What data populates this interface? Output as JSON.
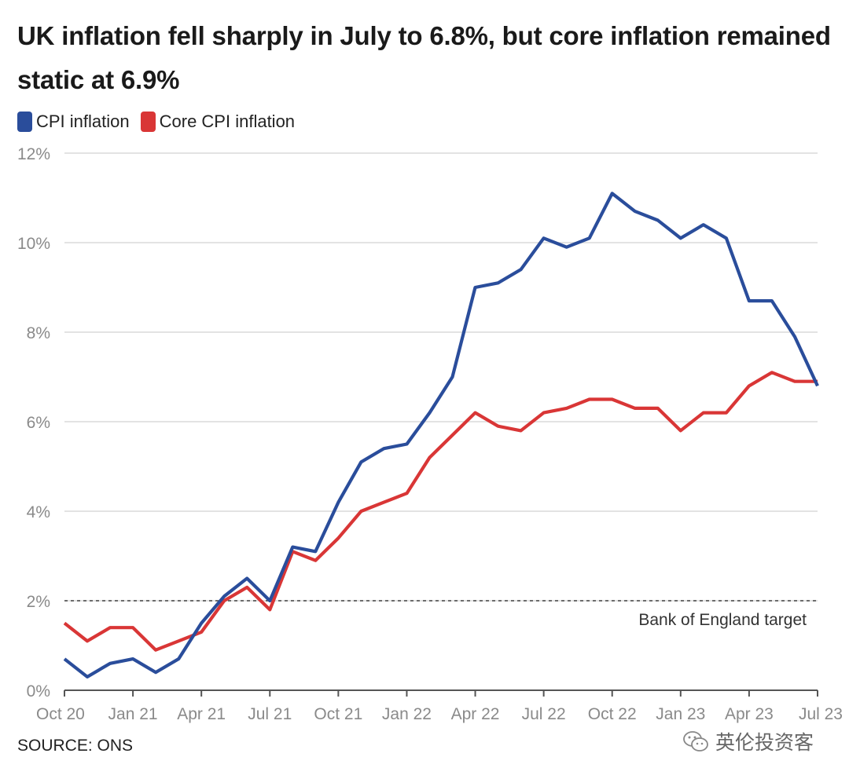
{
  "title": "UK inflation fell sharply in July to 6.8%, but core inflation remained static at 6.9%",
  "source": "SOURCE: ONS",
  "watermark": "英伦投资客",
  "colors": {
    "cpi": "#2a4d9b",
    "core": "#d93636",
    "grid": "#e3e3e3",
    "axis_text": "#8a8a8a"
  },
  "chart_data": {
    "type": "line",
    "title": "UK inflation fell sharply in July to 6.8%, but core inflation remained static at 6.9%",
    "xlabel": "",
    "ylabel": "",
    "ylim": [
      0,
      12
    ],
    "yticks": [
      "0%",
      "2%",
      "4%",
      "6%",
      "8%",
      "10%",
      "12%"
    ],
    "xticks": [
      "Oct 20",
      "Jan 21",
      "Apr 21",
      "Jul 21",
      "Oct 21",
      "Jan 22",
      "Apr 22",
      "Jul 22",
      "Oct 22",
      "Jan 23",
      "Apr 23",
      "Jul 23"
    ],
    "x": [
      "2020-10",
      "2020-11",
      "2020-12",
      "2021-01",
      "2021-02",
      "2021-03",
      "2021-04",
      "2021-05",
      "2021-06",
      "2021-07",
      "2021-08",
      "2021-09",
      "2021-10",
      "2021-11",
      "2021-12",
      "2022-01",
      "2022-02",
      "2022-03",
      "2022-04",
      "2022-05",
      "2022-06",
      "2022-07",
      "2022-08",
      "2022-09",
      "2022-10",
      "2022-11",
      "2022-12",
      "2023-01",
      "2023-02",
      "2023-03",
      "2023-04",
      "2023-05",
      "2023-06",
      "2023-07"
    ],
    "series": [
      {
        "name": "CPI inflation",
        "color": "#2a4d9b",
        "values": [
          0.7,
          0.3,
          0.6,
          0.7,
          0.4,
          0.7,
          1.5,
          2.1,
          2.5,
          2.0,
          3.2,
          3.1,
          4.2,
          5.1,
          5.4,
          5.5,
          6.2,
          7.0,
          9.0,
          9.1,
          9.4,
          10.1,
          9.9,
          10.1,
          11.1,
          10.7,
          10.5,
          10.1,
          10.4,
          10.1,
          8.7,
          8.7,
          7.9,
          6.8
        ]
      },
      {
        "name": "Core CPI inflation",
        "color": "#d93636",
        "values": [
          1.5,
          1.1,
          1.4,
          1.4,
          0.9,
          1.1,
          1.3,
          2.0,
          2.3,
          1.8,
          3.1,
          2.9,
          3.4,
          4.0,
          4.2,
          4.4,
          5.2,
          5.7,
          6.2,
          5.9,
          5.8,
          6.2,
          6.3,
          6.5,
          6.5,
          6.3,
          6.3,
          5.8,
          6.2,
          6.2,
          6.8,
          7.1,
          6.9,
          6.9
        ]
      }
    ],
    "reference_line": {
      "value": 2,
      "label": "Bank of England target"
    },
    "legend": "top-left",
    "grid": true
  }
}
